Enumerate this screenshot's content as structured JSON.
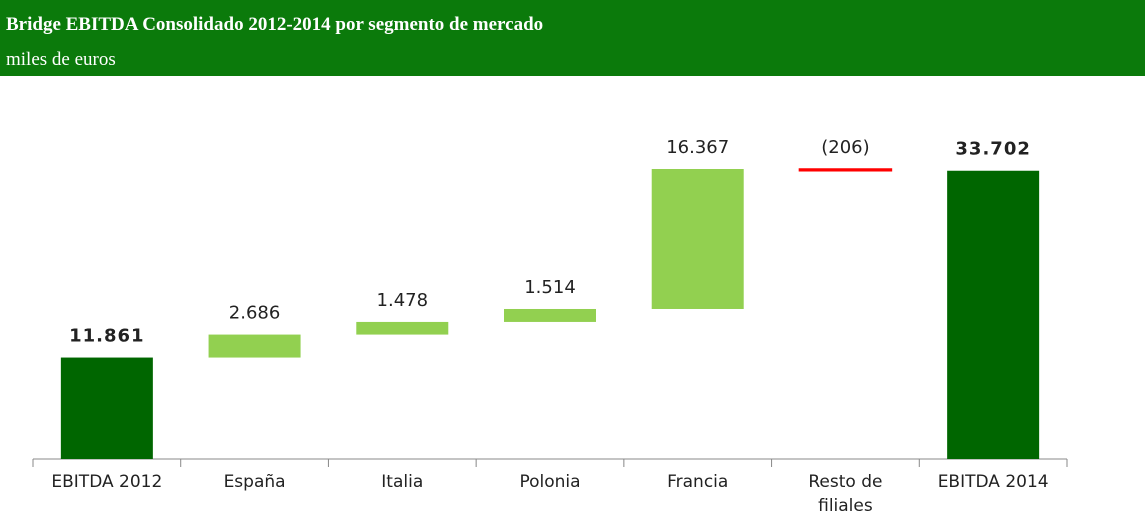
{
  "chart_data": {
    "type": "waterfall",
    "title": "Bridge EBITDA Consolidado 2012-2014 por segmento de mercado",
    "subtitle": "miles de euros",
    "categories": [
      "EBITDA 2012",
      "España",
      "Italia",
      "Polonia",
      "Francia",
      "Resto de filiales",
      "EBITDA 2014"
    ],
    "values": [
      11861,
      2686,
      1478,
      1514,
      16367,
      -206,
      33702
    ],
    "value_labels": [
      "11.861",
      "2.686",
      "1.478",
      "1.514",
      "16.367",
      "(206)",
      "33.702"
    ],
    "measure": [
      "absolute",
      "relative",
      "relative",
      "relative",
      "relative",
      "relative",
      "total"
    ],
    "colors": {
      "total": "#006600",
      "increase": "#92d050",
      "decrease": "#ff0000"
    }
  }
}
